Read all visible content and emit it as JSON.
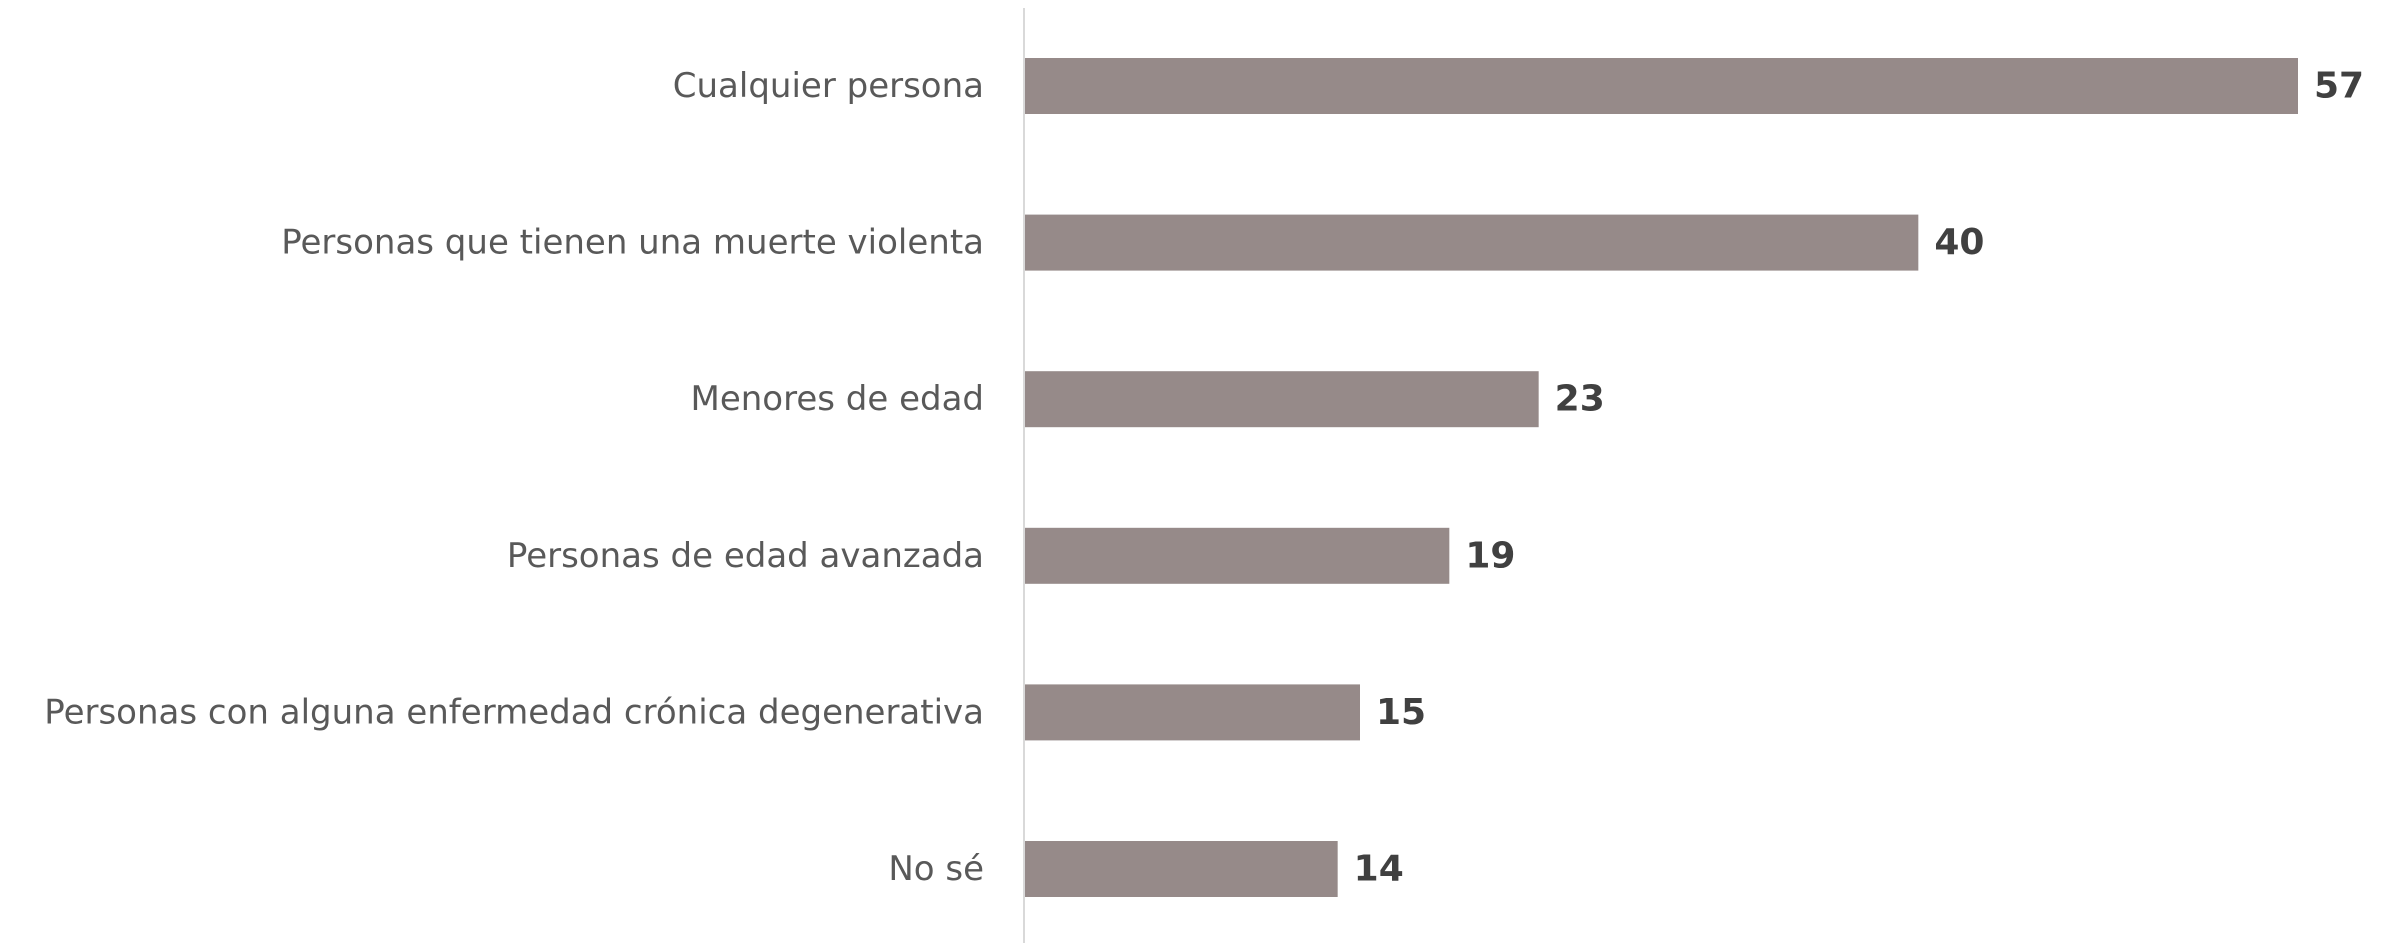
{
  "chart_data": {
    "type": "bar",
    "orientation": "horizontal",
    "categories": [
      "Cualquier persona",
      "Personas que tienen una muerte violenta",
      "Menores de edad",
      "Personas de edad avanzada",
      "Personas con alguna enfermedad crónica degenerativa",
      "No sé"
    ],
    "values": [
      57,
      40,
      23,
      19,
      15,
      14
    ],
    "xlim": [
      0,
      57
    ],
    "grid": false,
    "legend": "none",
    "data_labels": true,
    "colors": {
      "bar": "#968a89",
      "axis": "#d9d9d9",
      "category_text": "#595959",
      "value_text": "#404040"
    }
  }
}
